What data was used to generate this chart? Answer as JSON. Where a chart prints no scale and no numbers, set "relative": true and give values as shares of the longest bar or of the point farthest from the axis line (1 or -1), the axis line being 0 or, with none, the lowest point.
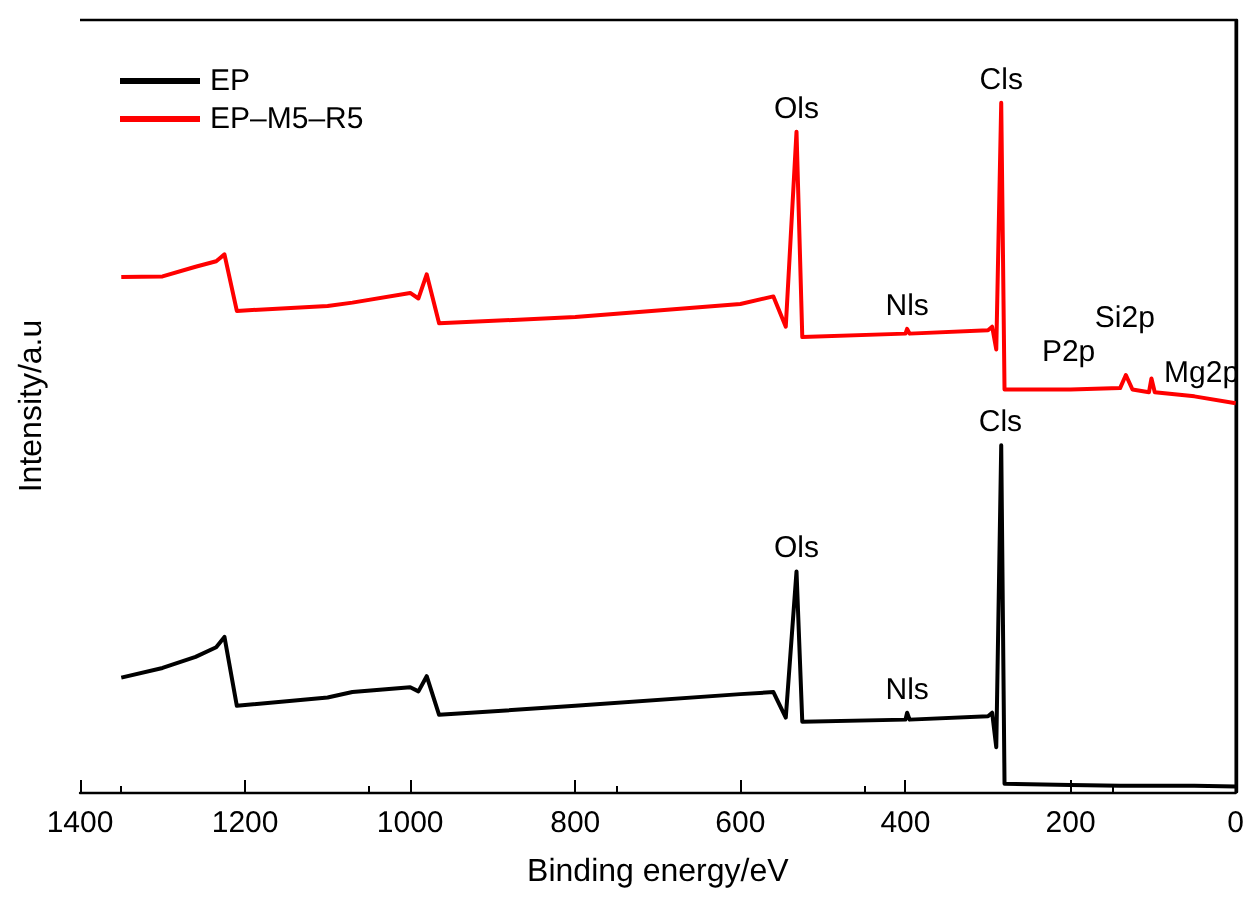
{
  "chart_data": {
    "type": "line",
    "relative": true,
    "xlabel": "Binding energy/eV",
    "ylabel": "Intensity/a.u",
    "xlim": [
      1400,
      0
    ],
    "xticks": [
      1400,
      1200,
      1000,
      800,
      600,
      400,
      200,
      0
    ],
    "tick_labels": "x",
    "legend": "top left",
    "grid": false,
    "marker": "none",
    "line_style": "solid",
    "x": [
      1350,
      1300,
      1260,
      1235,
      1225,
      1210,
      1100,
      1070,
      1000,
      990,
      980,
      965,
      800,
      600,
      560,
      545,
      532,
      525,
      400,
      398,
      395,
      300,
      295,
      290,
      284,
      280,
      200,
      140,
      133,
      125,
      105,
      102,
      98,
      50,
      0
    ],
    "series": [
      {
        "name": "EP",
        "color": "#000000",
        "values": [
          0.166,
          0.18,
          0.196,
          0.21,
          0.225,
          0.125,
          0.137,
          0.145,
          0.152,
          0.146,
          0.168,
          0.112,
          0.125,
          0.142,
          0.145,
          0.108,
          0.32,
          0.102,
          0.105,
          0.115,
          0.105,
          0.11,
          0.115,
          0.065,
          0.503,
          0.012,
          0.01,
          0.009,
          0.009,
          0.009,
          0.009,
          0.009,
          0.009,
          0.009,
          0.008
        ]
      },
      {
        "name": "EP–M5–R5",
        "color": "#ff0000",
        "values": [
          0.747,
          0.748,
          0.762,
          0.77,
          0.78,
          0.698,
          0.705,
          0.71,
          0.724,
          0.716,
          0.751,
          0.68,
          0.689,
          0.708,
          0.719,
          0.675,
          0.958,
          0.66,
          0.665,
          0.672,
          0.665,
          0.67,
          0.675,
          0.642,
          1.0,
          0.584,
          0.584,
          0.586,
          0.605,
          0.584,
          0.58,
          0.6,
          0.58,
          0.574,
          0.564
        ]
      }
    ],
    "annotations": [
      {
        "text": "Ols",
        "x": 532,
        "y": 0.958
      },
      {
        "text": "Cls",
        "x": 284,
        "y": 1.0
      },
      {
        "text": "Nls",
        "x": 398,
        "y": 0.672
      },
      {
        "text": "P2p",
        "x": 133,
        "y": 0.605
      },
      {
        "text": "Si2p",
        "x": 102,
        "y": 0.6
      },
      {
        "text": "Mg2p",
        "x": 50,
        "y": 0.574
      },
      {
        "text": "Ols",
        "x": 532,
        "y": 0.32
      },
      {
        "text": "Cls",
        "x": 285,
        "y": 0.503
      },
      {
        "text": "Nls",
        "x": 398,
        "y": 0.115
      }
    ]
  }
}
